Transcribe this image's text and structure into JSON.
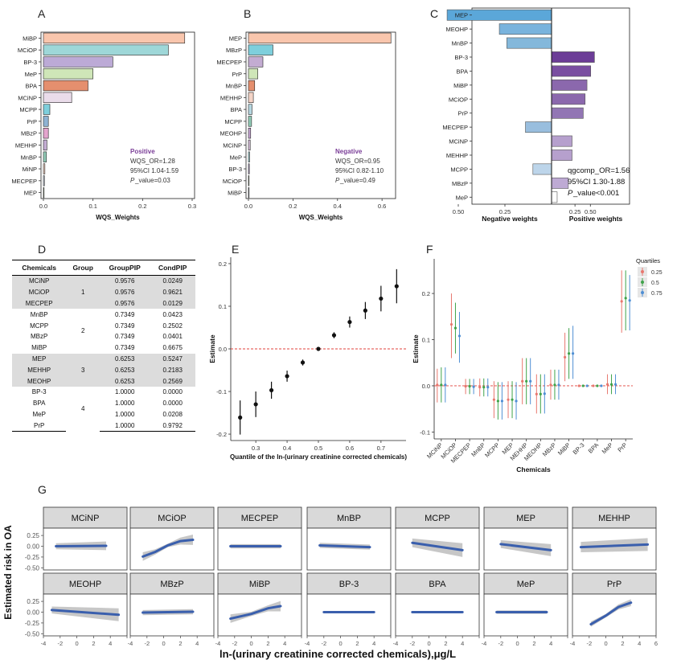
{
  "panel_letters": [
    "A",
    "B",
    "C",
    "D",
    "E",
    "F",
    "G"
  ],
  "chart_data": [
    {
      "id": "A",
      "type": "bar",
      "orientation": "horizontal",
      "categories": [
        "MiBP",
        "MCiOP",
        "BP-3",
        "MeP",
        "BPA",
        "MCiNP",
        "MCPP",
        "PrP",
        "MBzP",
        "MEHHP",
        "MnBP",
        "MiNP",
        "MECPEP",
        "MEP"
      ],
      "values": [
        0.285,
        0.252,
        0.14,
        0.1,
        0.09,
        0.057,
        0.013,
        0.01,
        0.01,
        0.007,
        0.006,
        0.003,
        0.002,
        0.001
      ],
      "colors": [
        "#f9c6ad",
        "#9ed7d8",
        "#bcaad6",
        "#cfe6b8",
        "#e58f6e",
        "#eadcea",
        "#7ecfdc",
        "#8fb3d3",
        "#e3a4cd",
        "#c3acd2",
        "#93cdb8",
        "#f3d3c6",
        "#c8d0e1",
        "#d6e9c4"
      ],
      "xlabel": "WQS_Weights",
      "xlim": [
        0,
        0.3
      ],
      "xticks": [
        "0.0",
        "0.1",
        "0.2",
        "0.3"
      ],
      "annotation": {
        "title": "Positive",
        "line1": "WQS_OR=1.28",
        "line2": "95%CI 1.04-1.59",
        "p_italic": "P",
        "p_rest": "_value=0.03"
      }
    },
    {
      "id": "B",
      "type": "bar",
      "orientation": "horizontal",
      "categories": [
        "MEP",
        "MBzP",
        "MECPEP",
        "PrP",
        "MnBP",
        "MEHHP",
        "BPA",
        "MCPP",
        "MEOHP",
        "MCiNP",
        "MeP",
        "BP-3",
        "MCiOP",
        "MiBP"
      ],
      "values": [
        0.64,
        0.11,
        0.065,
        0.042,
        0.028,
        0.022,
        0.016,
        0.014,
        0.01,
        0.008,
        0.005,
        0.004,
        0.002,
        0.001
      ],
      "colors": [
        "#f9c6ad",
        "#7ecfdc",
        "#c3acd2",
        "#cfe6b8",
        "#e58f6e",
        "#f3d3c6",
        "#b5d6e0",
        "#93cdb8",
        "#c9a7d6",
        "#d9c0dc",
        "#9ed7d8",
        "#bcaad6",
        "#d6e9c4",
        "#c8d0e1"
      ],
      "xlabel": "WQS_Weights",
      "xlim": [
        0,
        0.65
      ],
      "xticks": [
        "0.0",
        "0.2",
        "0.4",
        "0.6"
      ],
      "annotation": {
        "title": "Negative",
        "line1": "WQS_OR=0.95",
        "line2": "95%CI 0.82-1.10",
        "p_italic": "P",
        "p_rest": "_value=0.49"
      }
    },
    {
      "id": "C",
      "type": "bar",
      "orientation": "horizontal_diverging",
      "categories": [
        "MEP",
        "MEOHP",
        "MnBP",
        "BP-3",
        "BPA",
        "MiBP",
        "MCiOP",
        "PrP",
        "MECPEP",
        "MCiNP",
        "MEHHP",
        "MCPP",
        "MBzP",
        "MeP"
      ],
      "values": [
        -0.56,
        -0.28,
        -0.24,
        0.23,
        0.21,
        0.19,
        0.18,
        0.17,
        -0.14,
        0.11,
        0.11,
        -0.1,
        0.09,
        0.03
      ],
      "colors": [
        "#5ba7d9",
        "#79b3dd",
        "#84b8db",
        "#6c3d97",
        "#7a4fa1",
        "#8b68ad",
        "#8b68ad",
        "#9276b4",
        "#99bede",
        "#b6a0cd",
        "#b6a0cd",
        "#bdd5ea",
        "#beaad4",
        "#ffffff"
      ],
      "xlabel_left": "Negative weights",
      "xlabel_right": "Positive weights",
      "xticks_left": [
        "0.50",
        "0.25"
      ],
      "xticks_right": [
        "0.25",
        "0.50"
      ],
      "annotation": {
        "line1": "qgcomp_OR=1.56",
        "line2": "95%CI 1.30-1.88",
        "p_italic": "P",
        "p_rest": "_value<0.001"
      }
    },
    {
      "id": "D",
      "type": "table",
      "columns": [
        "Chemicals",
        "Group",
        "GroupPIP",
        "CondPIP"
      ],
      "rows": [
        [
          "MCiNP",
          "1",
          "0.9576",
          "0.0249"
        ],
        [
          "MCiOP",
          "",
          "0.9576",
          "0.9621"
        ],
        [
          "MECPEP",
          "",
          "0.9576",
          "0.0129"
        ],
        [
          "MnBP",
          "2",
          "0.7349",
          "0.0423"
        ],
        [
          "MCPP",
          "",
          "0.7349",
          "0.2502"
        ],
        [
          "MBzP",
          "",
          "0.7349",
          "0.0401"
        ],
        [
          "MiBP",
          "",
          "0.7349",
          "0.6675"
        ],
        [
          "MEP",
          "3",
          "0.6253",
          "0.5247"
        ],
        [
          "MEHHP",
          "",
          "0.6253",
          "0.2183"
        ],
        [
          "MEOHP",
          "",
          "0.6253",
          "0.2569"
        ],
        [
          "BP-3",
          "4",
          "1.0000",
          "0.0000"
        ],
        [
          "BPA",
          "",
          "1.0000",
          "0.0000"
        ],
        [
          "MeP",
          "",
          "1.0000",
          "0.0208"
        ],
        [
          "PrP",
          "",
          "1.0000",
          "0.9792"
        ]
      ]
    },
    {
      "id": "E",
      "type": "scatter",
      "x": [
        0.25,
        0.3,
        0.35,
        0.4,
        0.45,
        0.5,
        0.55,
        0.6,
        0.65,
        0.7,
        0.75
      ],
      "y": [
        -0.161,
        -0.13,
        -0.097,
        -0.064,
        -0.032,
        0.0,
        0.032,
        0.063,
        0.09,
        0.118,
        0.147
      ],
      "err": [
        0.04,
        0.03,
        0.02,
        0.013,
        0.007,
        0.0,
        0.007,
        0.013,
        0.02,
        0.03,
        0.04
      ],
      "xlabel": "Quantile of the ln-(urinary creatinine corrected chemicals)",
      "ylabel": "Estimate",
      "xlim": [
        0.22,
        0.78
      ],
      "ylim": [
        -0.215,
        0.215
      ],
      "xticks": [
        "0.3",
        "0.4",
        "0.5",
        "0.6",
        "0.7"
      ],
      "yticks": [
        "0.2",
        "0.1",
        "0.0",
        "-0.1",
        "-0.2"
      ],
      "reference_line": 0.0
    },
    {
      "id": "F",
      "type": "scatter",
      "categories": [
        "MCiNP",
        "MCiOP",
        "MECPEP",
        "MnBP",
        "MCPP",
        "MEP",
        "MEHHP",
        "MEOHP",
        "MBzP",
        "MiBP",
        "BP-3",
        "BPA",
        "MeP",
        "PrP"
      ],
      "series": [
        {
          "name": "0.25",
          "color": "#e8776e",
          "values": [
            0.002,
            0.133,
            -0.001,
            -0.003,
            -0.03,
            -0.03,
            0.01,
            -0.018,
            0.002,
            0.062,
            0.0,
            0.0,
            0.003,
            0.183
          ],
          "low": [
            -0.036,
            0.06,
            -0.018,
            -0.023,
            -0.07,
            -0.07,
            -0.04,
            -0.06,
            -0.03,
            0.01,
            -0.002,
            -0.002,
            -0.018,
            0.115
          ],
          "high": [
            0.037,
            0.2,
            0.015,
            0.016,
            0.01,
            0.01,
            0.06,
            0.025,
            0.035,
            0.115,
            0.002,
            0.002,
            0.025,
            0.25
          ]
        },
        {
          "name": "0.5",
          "color": "#3fa34a",
          "values": [
            0.002,
            0.125,
            -0.001,
            -0.003,
            -0.033,
            -0.03,
            0.01,
            -0.018,
            0.002,
            0.07,
            0.0,
            0.0,
            0.003,
            0.19
          ],
          "low": [
            -0.036,
            0.07,
            -0.018,
            -0.023,
            -0.073,
            -0.07,
            -0.04,
            -0.06,
            -0.03,
            0.015,
            -0.002,
            -0.002,
            -0.018,
            0.12
          ],
          "high": [
            0.04,
            0.18,
            0.015,
            0.016,
            0.008,
            0.01,
            0.06,
            0.025,
            0.035,
            0.125,
            0.002,
            0.002,
            0.025,
            0.25
          ]
        },
        {
          "name": "0.75",
          "color": "#4f8fd4",
          "values": [
            0.002,
            0.108,
            -0.002,
            -0.003,
            -0.033,
            -0.033,
            0.01,
            -0.017,
            0.002,
            0.07,
            0.0,
            0.0,
            0.003,
            0.185
          ],
          "low": [
            -0.036,
            0.05,
            -0.018,
            -0.023,
            -0.073,
            -0.073,
            -0.04,
            -0.06,
            -0.03,
            0.015,
            -0.002,
            -0.002,
            -0.018,
            0.12
          ],
          "high": [
            0.04,
            0.16,
            0.015,
            0.016,
            0.008,
            0.008,
            0.06,
            0.025,
            0.035,
            0.13,
            0.002,
            0.002,
            0.025,
            0.24
          ]
        }
      ],
      "legend_title": "Quartiles",
      "xlabel": "Chemicals",
      "ylabel": "Estimate",
      "ylim": [
        -0.115,
        0.275
      ],
      "yticks": [
        "0.2",
        "0.1",
        "0.0",
        "-0.1"
      ],
      "reference_line": 0.0
    },
    {
      "id": "G",
      "type": "line",
      "layout": "facet_grid_2x7",
      "ylabel": "Estimated risk in OA",
      "xlabel": "ln-(urinary creatinine corrected chemicals),μg/L",
      "xlim": [
        -4,
        6
      ],
      "ylim": [
        -0.55,
        0.42
      ],
      "xticks": [
        "-4",
        "-2",
        "0",
        "2",
        "4",
        "6"
      ],
      "yticks": [
        "0.25",
        "0.00",
        "-0.25",
        "-0.50"
      ],
      "panels": [
        {
          "name": "MCiNP",
          "x": [
            -2.5,
            3.5
          ],
          "y": [
            0.0,
            0.01
          ],
          "band": [
            0.07,
            0.1
          ]
        },
        {
          "name": "MCiOP",
          "x": [
            -2.5,
            -1,
            0.5,
            2,
            3.5
          ],
          "y": [
            -0.24,
            -0.13,
            0.02,
            0.12,
            0.15
          ],
          "band": [
            0.1,
            0.06,
            0.04,
            0.08,
            0.12
          ]
        },
        {
          "name": "MECPEP",
          "x": [
            -2.5,
            3.5
          ],
          "y": [
            0.0,
            0.0
          ],
          "band": [
            0.05,
            0.05
          ]
        },
        {
          "name": "MnBP",
          "x": [
            -2.5,
            3.5
          ],
          "y": [
            0.02,
            -0.02
          ],
          "band": [
            0.06,
            0.06
          ]
        },
        {
          "name": "MCPP",
          "x": [
            -2,
            4
          ],
          "y": [
            0.08,
            -0.09
          ],
          "band": [
            0.1,
            0.16
          ]
        },
        {
          "name": "MEP",
          "x": [
            -2,
            4
          ],
          "y": [
            0.05,
            -0.09
          ],
          "band": [
            0.09,
            0.14
          ]
        },
        {
          "name": "MEHHP",
          "x": [
            -3,
            5
          ],
          "y": [
            -0.02,
            0.04
          ],
          "band": [
            0.12,
            0.15
          ]
        },
        {
          "name": "MEOHP",
          "x": [
            -3,
            5
          ],
          "y": [
            0.05,
            -0.06
          ],
          "band": [
            0.08,
            0.15
          ]
        },
        {
          "name": "MBzP",
          "x": [
            -2.5,
            3.5
          ],
          "y": [
            -0.01,
            0.01
          ],
          "band": [
            0.06,
            0.06
          ]
        },
        {
          "name": "MiBP",
          "x": [
            -2.5,
            0,
            2,
            3.5
          ],
          "y": [
            -0.15,
            -0.04,
            0.09,
            0.14
          ],
          "band": [
            0.1,
            0.05,
            0.07,
            0.12
          ]
        },
        {
          "name": "BP-3",
          "x": [
            -2,
            4
          ],
          "y": [
            0.0,
            0.0
          ],
          "band": [
            0.02,
            0.02
          ]
        },
        {
          "name": "BPA",
          "x": [
            -2,
            4
          ],
          "y": [
            0.0,
            0.0
          ],
          "band": [
            0.02,
            0.02
          ]
        },
        {
          "name": "MeP",
          "x": [
            -2.5,
            3.5
          ],
          "y": [
            0.0,
            0.0
          ],
          "band": [
            0.04,
            0.04
          ]
        },
        {
          "name": "PrP",
          "x": [
            -1.8,
            0,
            1.5,
            3
          ],
          "y": [
            -0.28,
            -0.08,
            0.12,
            0.22
          ],
          "band": [
            0.06,
            0.04,
            0.06,
            0.08
          ]
        }
      ]
    }
  ]
}
